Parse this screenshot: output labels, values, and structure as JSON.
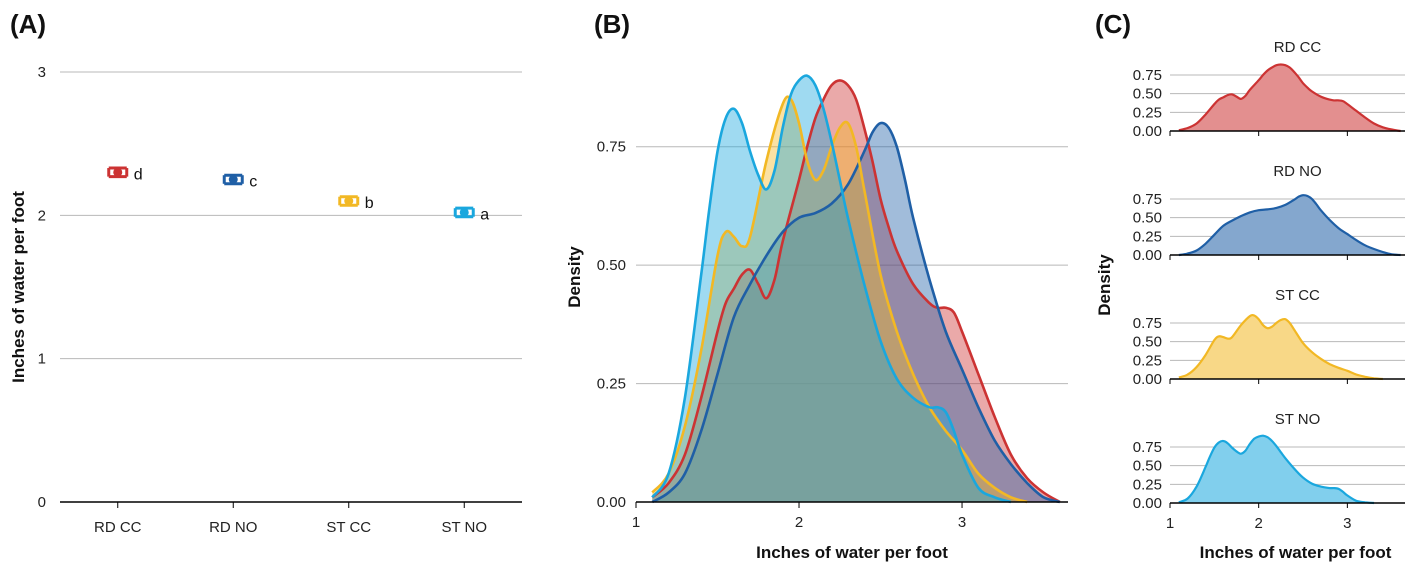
{
  "colors": {
    "RD CC": "#cc3333",
    "RD NO": "#1f5fa6",
    "ST CC": "#f2b824",
    "ST NO": "#1aa7de",
    "overlap": "#7f8f66"
  },
  "panels": {
    "A": {
      "tag": "(A)"
    },
    "B": {
      "tag": "(B)"
    },
    "C": {
      "tag": "(C)"
    }
  },
  "chart_data": [
    {
      "panel": "A",
      "type": "scatter",
      "title": "",
      "xlabel": "",
      "ylabel": "Inches of water per foot",
      "categories": [
        "RD CC",
        "RD NO",
        "ST CC",
        "ST NO"
      ],
      "values": [
        2.3,
        2.25,
        2.1,
        2.02
      ],
      "error": [
        0.03,
        0.03,
        0.03,
        0.03
      ],
      "letters": [
        "d",
        "c",
        "b",
        "a"
      ],
      "ylim": [
        0,
        3
      ],
      "yticks": [
        0,
        1,
        2,
        3
      ],
      "grid": true
    },
    {
      "panel": "B",
      "type": "area",
      "title": "",
      "xlabel": "Inches of water per foot",
      "ylabel": "Density",
      "xlim": [
        1,
        3.65
      ],
      "ylim": [
        0,
        0.95
      ],
      "xticks": [
        1,
        2,
        3
      ],
      "yticks": [
        "0.00",
        "0.25",
        "0.50",
        "0.75"
      ],
      "grid": true,
      "series": [
        {
          "name": "RD CC",
          "x": [
            1.1,
            1.2,
            1.3,
            1.4,
            1.5,
            1.55,
            1.6,
            1.65,
            1.7,
            1.75,
            1.8,
            1.85,
            1.9,
            2.0,
            2.05,
            2.1,
            2.15,
            2.2,
            2.25,
            2.3,
            2.35,
            2.4,
            2.45,
            2.5,
            2.55,
            2.6,
            2.7,
            2.8,
            2.85,
            2.9,
            2.95,
            3.0,
            3.1,
            3.2,
            3.3,
            3.4,
            3.5,
            3.6
          ],
          "y": [
            0.01,
            0.04,
            0.1,
            0.22,
            0.36,
            0.42,
            0.45,
            0.48,
            0.49,
            0.46,
            0.43,
            0.47,
            0.55,
            0.68,
            0.75,
            0.81,
            0.85,
            0.88,
            0.89,
            0.88,
            0.85,
            0.79,
            0.72,
            0.64,
            0.58,
            0.53,
            0.46,
            0.42,
            0.41,
            0.41,
            0.4,
            0.36,
            0.27,
            0.18,
            0.1,
            0.05,
            0.02,
            0.0
          ]
        },
        {
          "name": "RD NO",
          "x": [
            1.1,
            1.2,
            1.3,
            1.4,
            1.5,
            1.6,
            1.7,
            1.8,
            1.9,
            2.0,
            2.1,
            2.2,
            2.3,
            2.4,
            2.45,
            2.5,
            2.55,
            2.6,
            2.65,
            2.7,
            2.8,
            2.9,
            3.0,
            3.1,
            3.2,
            3.3,
            3.4,
            3.5,
            3.6
          ],
          "y": [
            0.0,
            0.02,
            0.06,
            0.15,
            0.27,
            0.39,
            0.46,
            0.52,
            0.57,
            0.6,
            0.61,
            0.63,
            0.67,
            0.74,
            0.78,
            0.8,
            0.79,
            0.75,
            0.68,
            0.6,
            0.47,
            0.36,
            0.28,
            0.2,
            0.13,
            0.08,
            0.04,
            0.01,
            0.0
          ]
        },
        {
          "name": "ST CC",
          "x": [
            1.1,
            1.2,
            1.3,
            1.4,
            1.5,
            1.55,
            1.6,
            1.65,
            1.7,
            1.8,
            1.9,
            1.95,
            2.0,
            2.05,
            2.1,
            2.15,
            2.2,
            2.25,
            2.3,
            2.35,
            2.4,
            2.5,
            2.6,
            2.7,
            2.8,
            2.9,
            3.0,
            3.1,
            3.2,
            3.3,
            3.4
          ],
          "y": [
            0.02,
            0.06,
            0.16,
            0.32,
            0.52,
            0.57,
            0.56,
            0.54,
            0.56,
            0.72,
            0.84,
            0.85,
            0.8,
            0.72,
            0.68,
            0.7,
            0.75,
            0.79,
            0.8,
            0.75,
            0.66,
            0.48,
            0.36,
            0.27,
            0.2,
            0.15,
            0.11,
            0.06,
            0.03,
            0.01,
            0.0
          ]
        },
        {
          "name": "ST NO",
          "x": [
            1.1,
            1.2,
            1.3,
            1.4,
            1.45,
            1.5,
            1.55,
            1.6,
            1.65,
            1.7,
            1.75,
            1.8,
            1.85,
            1.9,
            1.95,
            2.0,
            2.05,
            2.1,
            2.15,
            2.2,
            2.25,
            2.3,
            2.4,
            2.5,
            2.6,
            2.7,
            2.8,
            2.85,
            2.9,
            2.95,
            3.0,
            3.1,
            3.2,
            3.3
          ],
          "y": [
            0.01,
            0.06,
            0.22,
            0.48,
            0.62,
            0.74,
            0.81,
            0.83,
            0.8,
            0.74,
            0.69,
            0.66,
            0.7,
            0.79,
            0.86,
            0.89,
            0.9,
            0.88,
            0.83,
            0.76,
            0.68,
            0.6,
            0.46,
            0.34,
            0.26,
            0.22,
            0.2,
            0.2,
            0.19,
            0.15,
            0.1,
            0.03,
            0.01,
            0.0
          ]
        }
      ]
    },
    {
      "panel": "C",
      "type": "area",
      "title": "",
      "xlabel": "Inches of water per foot",
      "ylabel": "Density",
      "xlim": [
        1,
        3.65
      ],
      "xticks": [
        1,
        2,
        3
      ],
      "yticks": [
        "0.00",
        "0.25",
        "0.50",
        "0.75"
      ],
      "ylim": [
        0,
        0.95
      ],
      "grid": true,
      "facets": [
        {
          "name": "RD CC",
          "series_index": 0
        },
        {
          "name": "RD NO",
          "series_index": 1
        },
        {
          "name": "ST CC",
          "series_index": 2
        },
        {
          "name": "ST NO",
          "series_index": 3
        }
      ]
    }
  ]
}
